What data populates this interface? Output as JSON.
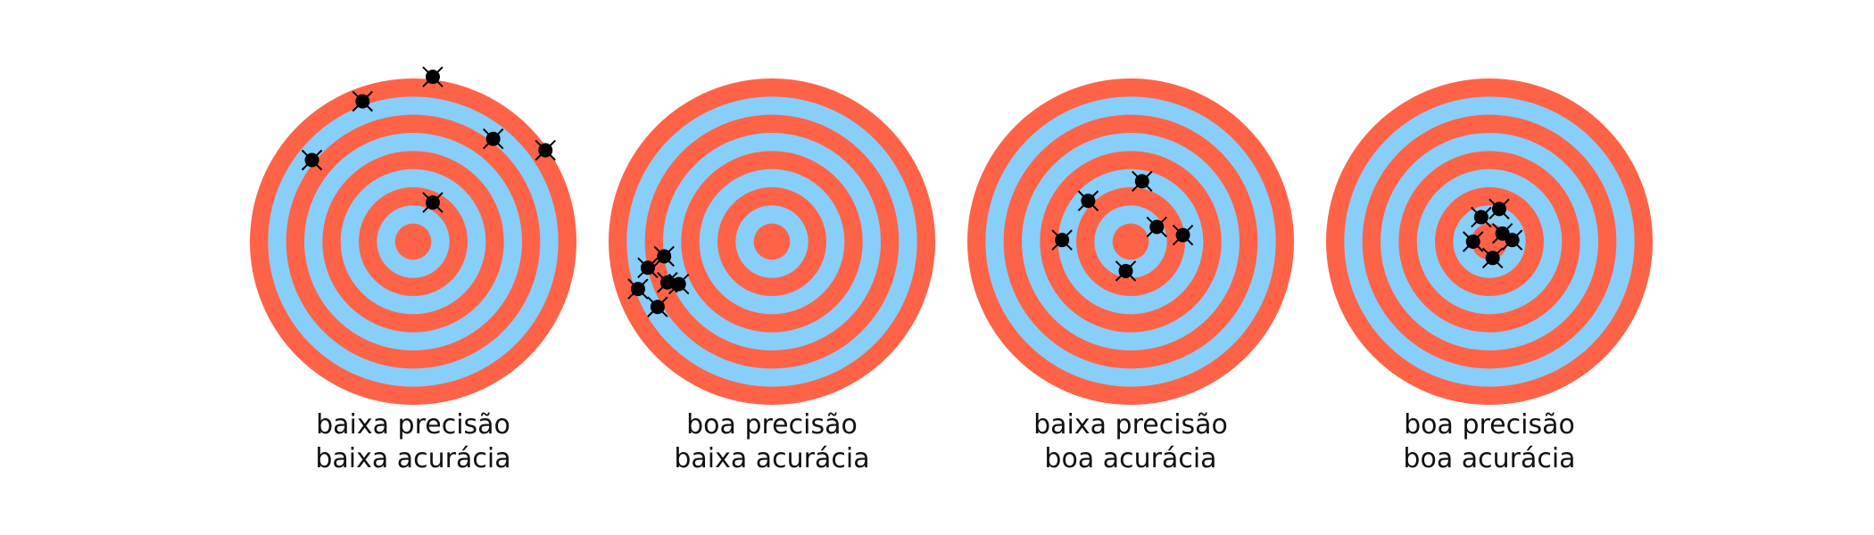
{
  "colors": {
    "ring_red": "#FF6347",
    "ring_blue": "#87CEFA",
    "marker": "#000000",
    "background": "#FFFFFF",
    "text": "#111111"
  },
  "diagram": {
    "ring_count": 9,
    "ring_color_order": [
      "red",
      "blue",
      "red",
      "blue",
      "red",
      "blue",
      "red",
      "blue",
      "red"
    ],
    "targets": [
      {
        "id": "target-low-precision-low-accuracy",
        "precision_label": "baixa precisão",
        "accuracy_label": "baixa acurácia",
        "shots": [
          {
            "dx": 0.12,
            "dy": -1.01
          },
          {
            "dx": -0.31,
            "dy": -0.86
          },
          {
            "dx": -0.62,
            "dy": -0.5
          },
          {
            "dx": 0.49,
            "dy": -0.63
          },
          {
            "dx": 0.81,
            "dy": -0.56
          },
          {
            "dx": 0.12,
            "dy": -0.24
          }
        ]
      },
      {
        "id": "target-high-precision-low-accuracy",
        "precision_label": "boa precisão",
        "accuracy_label": "baixa acurácia",
        "shots": [
          {
            "dx": -0.66,
            "dy": 0.09
          },
          {
            "dx": -0.76,
            "dy": 0.16
          },
          {
            "dx": -0.64,
            "dy": 0.25
          },
          {
            "dx": -0.57,
            "dy": 0.26
          },
          {
            "dx": -0.82,
            "dy": 0.29
          },
          {
            "dx": -0.7,
            "dy": 0.4
          }
        ]
      },
      {
        "id": "target-low-precision-high-accuracy",
        "precision_label": "baixa precisão",
        "accuracy_label": "boa acurácia",
        "shots": [
          {
            "dx": 0.07,
            "dy": -0.37
          },
          {
            "dx": -0.26,
            "dy": -0.25
          },
          {
            "dx": 0.16,
            "dy": -0.09
          },
          {
            "dx": 0.32,
            "dy": -0.04
          },
          {
            "dx": -0.42,
            "dy": -0.01
          },
          {
            "dx": -0.03,
            "dy": 0.18
          }
        ]
      },
      {
        "id": "target-high-precision-high-accuracy",
        "precision_label": "boa precisão",
        "accuracy_label": "boa acurácia",
        "shots": [
          {
            "dx": 0.06,
            "dy": -0.2
          },
          {
            "dx": -0.05,
            "dy": -0.15
          },
          {
            "dx": 0.08,
            "dy": -0.05
          },
          {
            "dx": 0.14,
            "dy": -0.01
          },
          {
            "dx": -0.1,
            "dy": 0.0
          },
          {
            "dx": 0.02,
            "dy": 0.1
          }
        ]
      }
    ]
  }
}
